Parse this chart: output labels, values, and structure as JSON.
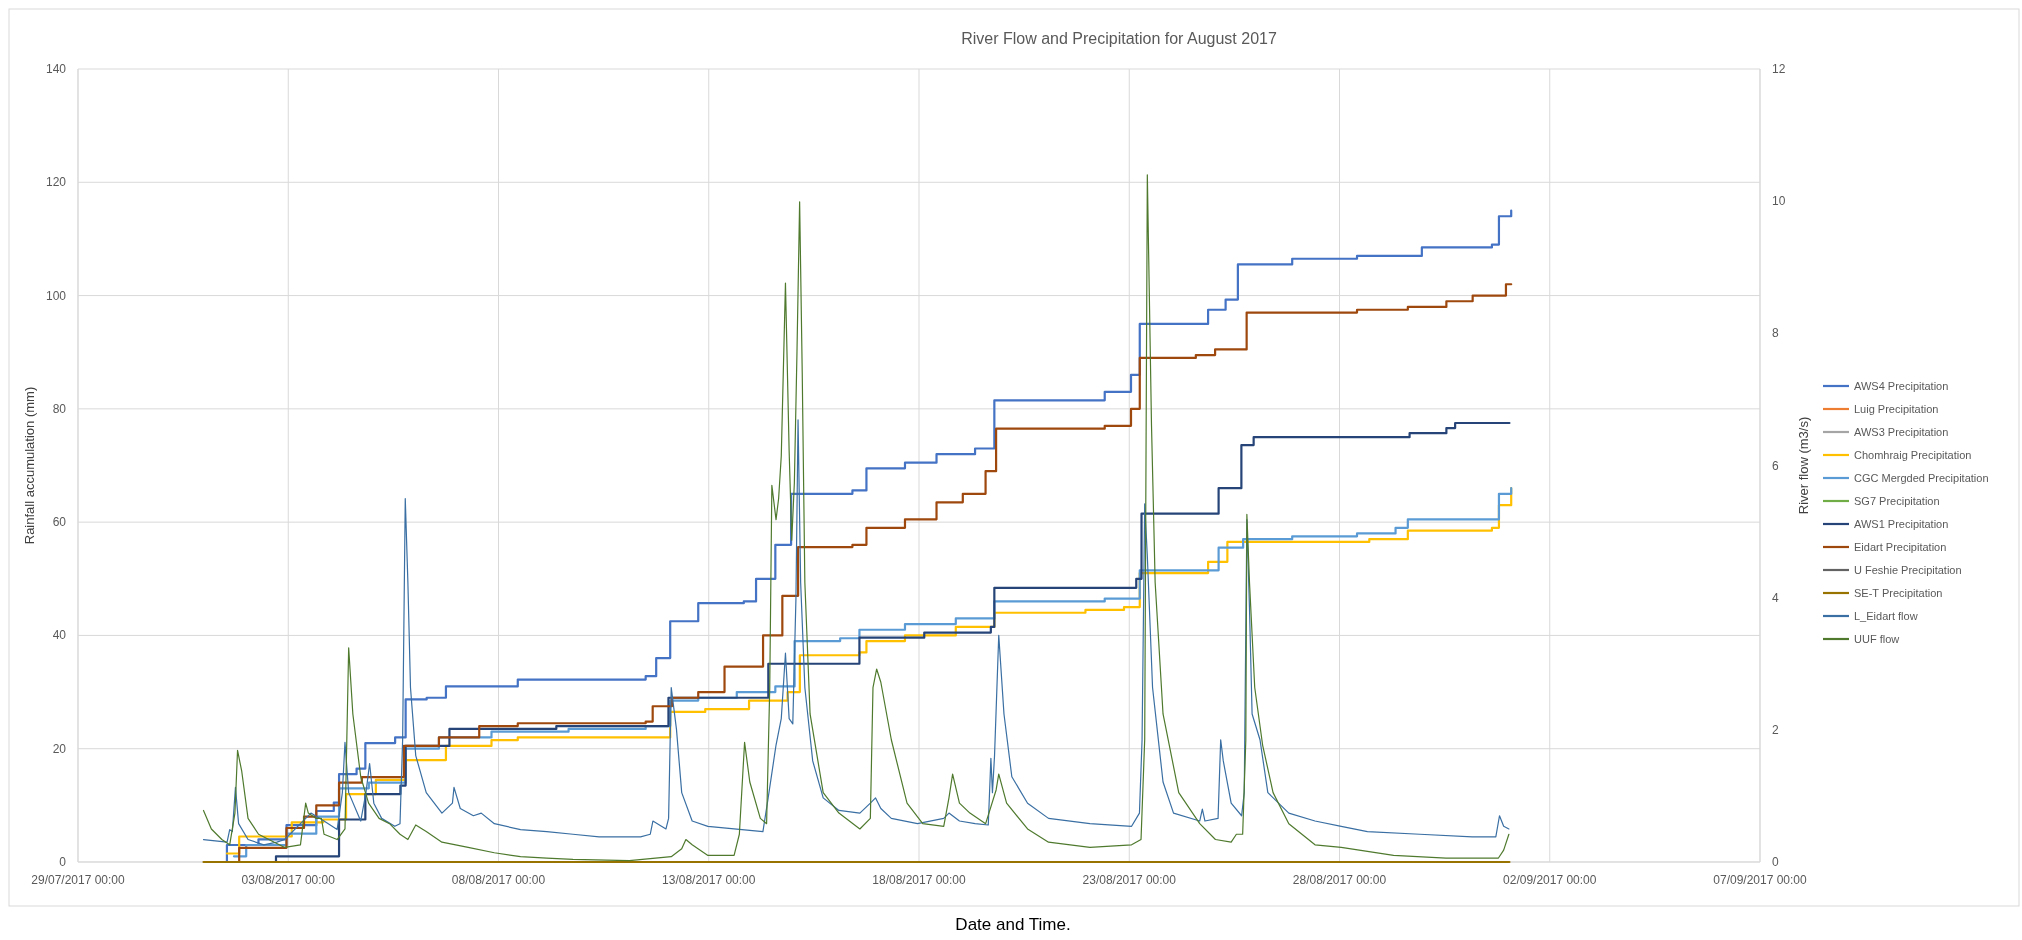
{
  "chart_data": {
    "type": "line",
    "title": "River Flow and Precipitation for August 2017",
    "xlabel": "Date and Time.",
    "ylabel": "Rainfall accumulation (mm)",
    "y2label": "River flow (m3/s)",
    "grid": true,
    "legend": "right",
    "xlim": [
      "2017-07-29",
      "2017-09-07"
    ],
    "xticks": [
      {
        "value": "2017-07-29",
        "label": "29/07/2017 00:00"
      },
      {
        "value": "2017-08-03",
        "label": "03/08/2017 00:00"
      },
      {
        "value": "2017-08-08",
        "label": "08/08/2017 00:00"
      },
      {
        "value": "2017-08-13",
        "label": "13/08/2017 00:00"
      },
      {
        "value": "2017-08-18",
        "label": "18/08/2017 00:00"
      },
      {
        "value": "2017-08-23",
        "label": "23/08/2017 00:00"
      },
      {
        "value": "2017-08-28",
        "label": "28/08/2017 00:00"
      },
      {
        "value": "2017-09-02",
        "label": "02/09/2017 00:00"
      },
      {
        "value": "2017-09-07",
        "label": "07/09/2017 00:00"
      }
    ],
    "ylim": [
      0,
      140
    ],
    "yticks": [
      0,
      20,
      40,
      60,
      80,
      100,
      120,
      140
    ],
    "y2lim": [
      0,
      12
    ],
    "y2ticks": [
      0,
      2,
      4,
      6,
      8,
      10,
      12
    ],
    "series": [
      {
        "name": "AWS4 Precipitation",
        "type": "step",
        "color": "#4472c4",
        "x": [
          "2017-08-01T09:00",
          "2017-08-01T13:00",
          "2017-08-02T07:00",
          "2017-08-02T23:00",
          "2017-08-03T16:00",
          "2017-08-04T02:00",
          "2017-08-04T05:00",
          "2017-08-04T15:00",
          "2017-08-04T20:00",
          "2017-08-05T13:00",
          "2017-08-05T19:00",
          "2017-08-06T07:00",
          "2017-08-06T18:00",
          "2017-08-08T11:00",
          "2017-08-11T12:00",
          "2017-08-11T18:00",
          "2017-08-12T02:00",
          "2017-08-12T18:00",
          "2017-08-13T20:00",
          "2017-08-14T03:00",
          "2017-08-14T14:00",
          "2017-08-14T23:00",
          "2017-08-16T10:00",
          "2017-08-16T18:00",
          "2017-08-17T16:00",
          "2017-08-18T10:00",
          "2017-08-19T08:00",
          "2017-08-19T19:00",
          "2017-08-22T10:00",
          "2017-08-23T01:00",
          "2017-08-23T06:00",
          "2017-08-24T14:00",
          "2017-08-24T21:00",
          "2017-08-25T07:00",
          "2017-08-25T14:00",
          "2017-08-26T21:00",
          "2017-08-28T10:00",
          "2017-08-29T23:00",
          "2017-08-31T15:00",
          "2017-08-31T19:00",
          "2017-09-01T02:00"
        ],
        "values": [
          0,
          3,
          4,
          6.5,
          9,
          10.5,
          15.5,
          16.5,
          21,
          22,
          28.7,
          29,
          31,
          32.2,
          32.8,
          36,
          42.5,
          45.7,
          46,
          50,
          56,
          65,
          65.6,
          69.5,
          70.5,
          72,
          73,
          81.5,
          83,
          86,
          95,
          95,
          97.5,
          99.3,
          105.5,
          106.5,
          107,
          108.5,
          109,
          114,
          115
        ]
      },
      {
        "name": "Luig Precipitation",
        "type": "step",
        "color": "#ed7d31"
      },
      {
        "name": "AWS3 Precipitation",
        "type": "step",
        "color": "#a5a5a5"
      },
      {
        "name": "Chomhraig Precipitation",
        "type": "step",
        "color": "#ffc000",
        "x": [
          "2017-08-01T13:00",
          "2017-08-01T20:00",
          "2017-08-03T02:00",
          "2017-08-03T20:00",
          "2017-08-04T09:00",
          "2017-08-05T02:00",
          "2017-08-05T19:00",
          "2017-08-06T18:00",
          "2017-08-07T20:00",
          "2017-08-08T11:00",
          "2017-08-12T02:00",
          "2017-08-12T22:00",
          "2017-08-13T23:00",
          "2017-08-14T21:00",
          "2017-08-15T04:00",
          "2017-08-16T14:00",
          "2017-08-16T18:00",
          "2017-08-17T16:00",
          "2017-08-18T21:00",
          "2017-08-19T19:00",
          "2017-08-21T23:00",
          "2017-08-22T21:00",
          "2017-08-23T06:00",
          "2017-08-24T21:00",
          "2017-08-25T08:00",
          "2017-08-28T17:00",
          "2017-08-29T15:00",
          "2017-08-31T15:00",
          "2017-08-31T19:00",
          "2017-09-01T02:00"
        ],
        "values": [
          1.5,
          4.5,
          7,
          7.5,
          12,
          14.5,
          18,
          20.5,
          21.5,
          22,
          26.5,
          27,
          28.5,
          30,
          36.5,
          37,
          39,
          40,
          41.5,
          44,
          44.5,
          45,
          51,
          53,
          56.5,
          57,
          58.5,
          59,
          63,
          66
        ]
      },
      {
        "name": "CGC Mergded Precipitation",
        "type": "step",
        "color": "#5b9bd5",
        "x": [
          "2017-08-01T17:00",
          "2017-08-02T00:00",
          "2017-08-02T23:00",
          "2017-08-03T16:00",
          "2017-08-04T05:00",
          "2017-08-04T22:00",
          "2017-08-05T19:00",
          "2017-08-06T14:00",
          "2017-08-07T20:00",
          "2017-08-09T16:00",
          "2017-08-11T12:00",
          "2017-08-12T02:00",
          "2017-08-12T18:00",
          "2017-08-13T16:00",
          "2017-08-14T14:00",
          "2017-08-15T01:00",
          "2017-08-16T03:00",
          "2017-08-16T14:00",
          "2017-08-17T16:00",
          "2017-08-18T21:00",
          "2017-08-19T19:00",
          "2017-08-22T10:00",
          "2017-08-23T06:00",
          "2017-08-25T03:00",
          "2017-08-25T17:00",
          "2017-08-26T21:00",
          "2017-08-28T10:00",
          "2017-08-29T08:00",
          "2017-08-29T15:00",
          "2017-08-31T19:00",
          "2017-09-01T02:00"
        ],
        "values": [
          1,
          3,
          5,
          8,
          13,
          14,
          20,
          22,
          23,
          23.5,
          24,
          28.5,
          29,
          30,
          31,
          39,
          39.5,
          41,
          42,
          43,
          46,
          46.5,
          51.5,
          55.5,
          57,
          57.5,
          58,
          59,
          60.5,
          65,
          66
        ]
      },
      {
        "name": "SG7 Precipitation",
        "type": "step",
        "color": "#70ad47"
      },
      {
        "name": "AWS1 Precipitation",
        "type": "step",
        "color": "#264478",
        "x": [
          "2017-08-01T20:00",
          "2017-08-02T17:00",
          "2017-08-04T05:00",
          "2017-08-04T20:00",
          "2017-08-05T16:00",
          "2017-08-05T19:00",
          "2017-08-06T20:00",
          "2017-08-09T09:00",
          "2017-08-12T01:00",
          "2017-08-14T10:00",
          "2017-08-16T14:00",
          "2017-08-18T03:00",
          "2017-08-19T17:00",
          "2017-08-19T19:00",
          "2017-08-23T04:00",
          "2017-08-23T07:00",
          "2017-08-25T03:00",
          "2017-08-25T16:00",
          "2017-08-25T23:00",
          "2017-08-29T16:00",
          "2017-08-30T13:00",
          "2017-08-30T18:00",
          "2017-09-01T01:00"
        ],
        "values": [
          0,
          1,
          7.5,
          12,
          13.5,
          20.5,
          23.5,
          24,
          29,
          35,
          39.6,
          40.5,
          41.5,
          48.4,
          50,
          61.5,
          66,
          73.6,
          75,
          75.7,
          76.6,
          77.5,
          77.5
        ]
      },
      {
        "name": "Eidart Precipitation",
        "type": "step",
        "color": "#9e480e",
        "x": [
          "2017-08-01T17:00",
          "2017-08-01T20:00",
          "2017-08-02T23:00",
          "2017-08-03T09:00",
          "2017-08-03T16:00",
          "2017-08-04T05:00",
          "2017-08-04T18:00",
          "2017-08-05T18:00",
          "2017-08-06T14:00",
          "2017-08-07T13:00",
          "2017-08-08T11:00",
          "2017-08-11T12:00",
          "2017-08-11T16:00",
          "2017-08-12T03:00",
          "2017-08-12T18:00",
          "2017-08-13T09:00",
          "2017-08-14T07:00",
          "2017-08-14T18:00",
          "2017-08-15T03:00",
          "2017-08-16T10:00",
          "2017-08-16T18:00",
          "2017-08-17T16:00",
          "2017-08-18T10:00",
          "2017-08-19T01:00",
          "2017-08-19T14:00",
          "2017-08-19T20:00",
          "2017-08-22T10:00",
          "2017-08-23T01:00",
          "2017-08-23T06:00",
          "2017-08-24T14:00",
          "2017-08-25T01:00",
          "2017-08-25T19:00",
          "2017-08-28T10:00",
          "2017-08-29T15:00",
          "2017-08-30T13:00",
          "2017-08-31T04:00",
          "2017-08-31T23:00",
          "2017-09-01T02:00"
        ],
        "values": [
          0,
          2.5,
          6,
          8,
          10,
          14,
          15,
          20.5,
          22,
          24,
          24.5,
          24.8,
          27.5,
          29,
          30,
          34.5,
          40,
          47,
          55.6,
          56,
          59,
          60.5,
          63.5,
          65,
          69,
          76.5,
          77,
          80,
          89,
          89.5,
          90.5,
          97,
          97.5,
          98,
          99,
          100,
          102,
          102
        ]
      },
      {
        "name": "U Feshie Precipitation",
        "type": "step",
        "color": "#636363"
      },
      {
        "name": "SE-T Precipitation",
        "type": "step",
        "color": "#997300",
        "x": [
          "2017-07-31T23:38",
          "2017-09-01T01:00"
        ],
        "values": [
          0,
          0
        ]
      },
      {
        "name": "L_Eidart flow",
        "type": "line",
        "axis": "y2",
        "color": "#3a6fa3",
        "x": [
          "2017-07-31T23:38",
          "2017-08-01T13:05",
          "2017-08-01T14:35",
          "2017-08-01T16:05",
          "2017-08-01T17:52",
          "2017-08-01T19:40",
          "2017-08-02T01:03",
          "2017-08-02T10:02",
          "2017-08-02T17:30",
          "2017-08-02T22:00",
          "2017-08-03T06:58",
          "2017-08-03T12:57",
          "2017-08-03T20:25",
          "2017-08-04T03:54",
          "2017-08-04T06:53",
          "2017-08-04T08:23",
          "2017-08-04T10:29",
          "2017-08-04T17:22",
          "2017-08-04T20:21",
          "2017-08-04T22:26",
          "2017-08-05T00:50",
          "2017-08-05T05:19",
          "2017-08-05T12:48",
          "2017-08-05T15:47",
          "2017-08-05T17:17",
          "2017-08-05T18:47",
          "2017-08-05T20:17",
          "2017-08-05T21:46",
          "2017-08-06T00:46",
          "2017-08-06T06:45",
          "2017-08-06T15:43",
          "2017-08-06T21:42",
          "2017-08-06T22:36",
          "2017-08-07T02:11",
          "2017-08-07T09:40",
          "2017-08-07T14:09",
          "2017-08-07T21:38",
          "2017-08-08T12:35",
          "2017-08-09T03:32",
          "2017-08-09T18:29",
          "2017-08-10T09:27",
          "2017-08-11T09:05",
          "2017-08-11T14:37",
          "2017-08-11T16:07",
          "2017-08-11T23:35",
          "2017-08-12T01:05",
          "2017-08-12T02:35",
          "2017-08-12T05:34",
          "2017-08-12T08:34",
          "2017-08-12T14:32",
          "2017-08-12T23:31",
          "2017-08-13T14:28",
          "2017-08-14T06:55",
          "2017-08-14T09:55",
          "2017-08-14T14:24",
          "2017-08-14T17:23",
          "2017-08-14T19:47",
          "2017-08-14T21:53",
          "2017-08-14T23:58",
          "2017-08-15T01:46",
          "2017-08-15T02:58",
          "2017-08-15T04:27",
          "2017-08-15T06:51",
          "2017-08-15T11:20",
          "2017-08-15T17:19",
          "2017-08-16T02:17",
          "2017-08-16T14:15",
          "2017-08-16T20:14",
          "2017-08-16T23:13",
          "2017-08-17T02:13",
          "2017-08-17T08:12",
          "2017-08-17T23:09",
          "2017-08-18T14:07",
          "2017-08-18T17:06",
          "2017-08-18T23:05",
          "2017-08-19T08:03",
          "2017-08-19T15:32",
          "2017-08-19T17:02",
          "2017-08-19T17:55",
          "2017-08-19T19:07",
          "2017-08-19T21:31",
          "2017-08-20T00:30",
          "2017-08-20T04:59",
          "2017-08-20T13:58",
          "2017-08-21T01:56",
          "2017-08-22T01:34",
          "2017-08-23T01:20",
          "2017-08-23T05:49",
          "2017-08-23T07:19",
          "2017-08-23T08:49",
          "2017-08-23T10:19",
          "2017-08-23T13:18",
          "2017-08-23T19:17",
          "2017-08-24T01:16",
          "2017-08-24T16:13",
          "2017-08-24T17:43",
          "2017-08-24T19:13",
          "2017-08-25T02:41",
          "2017-08-25T04:11",
          "2017-08-25T05:40",
          "2017-08-25T10:10",
          "2017-08-25T16:08",
          "2017-08-25T17:38",
          "2017-08-25T19:08",
          "2017-08-25T20:38",
          "2017-08-25T22:07",
          "2017-08-26T02:37",
          "2017-08-26T07:06",
          "2017-08-26T19:04",
          "2017-08-27T10:01",
          "2017-08-28T00:59",
          "2017-08-28T15:56",
          "2017-08-29T21:50",
          "2017-08-31T03:45",
          "2017-08-31T17:13",
          "2017-08-31T19:19",
          "2017-08-31T21:42",
          "2017-09-01T00:41"
        ],
        "values": [
          0.34,
          0.3,
          0.49,
          0.46,
          1.13,
          0.58,
          0.34,
          0.26,
          0.3,
          0.34,
          0.58,
          0.74,
          0.62,
          0.49,
          1.05,
          1.81,
          1.05,
          0.62,
          1.05,
          1.49,
          0.89,
          0.66,
          0.54,
          0.58,
          1.85,
          5.5,
          4.23,
          2.64,
          1.61,
          1.05,
          0.74,
          0.89,
          1.13,
          0.81,
          0.7,
          0.74,
          0.58,
          0.49,
          0.46,
          0.42,
          0.38,
          0.38,
          0.42,
          0.62,
          0.5,
          0.66,
          2.64,
          2.01,
          1.05,
          0.62,
          0.54,
          0.5,
          0.46,
          0.97,
          1.77,
          2.17,
          3.16,
          2.17,
          2.09,
          3.99,
          6.69,
          4.23,
          2.64,
          1.53,
          0.97,
          0.78,
          0.74,
          0.89,
          0.97,
          0.81,
          0.66,
          0.58,
          0.66,
          0.74,
          0.62,
          0.58,
          0.56,
          1.57,
          1.05,
          1.61,
          3.43,
          2.24,
          1.29,
          0.89,
          0.66,
          0.58,
          0.54,
          0.74,
          1.85,
          5.42,
          4.63,
          2.64,
          1.21,
          0.74,
          0.62,
          0.8,
          0.62,
          0.66,
          1.85,
          1.53,
          0.89,
          0.7,
          1.05,
          5.18,
          3.83,
          2.24,
          1.85,
          1.05,
          0.74,
          0.62,
          0.54,
          0.46,
          0.42,
          0.38,
          0.38,
          0.7,
          0.54,
          0.5
        ]
      },
      {
        "name": "UUF flow",
        "type": "line",
        "axis": "y2",
        "color": "#4f7a2e",
        "x": [
          "2017-07-31T23:38",
          "2017-08-01T04:07",
          "2017-08-01T10:06",
          "2017-08-01T14:35",
          "2017-08-01T17:34",
          "2017-08-01T19:04",
          "2017-08-01T21:28",
          "2017-08-02T01:03",
          "2017-08-02T07:02",
          "2017-08-02T16:01",
          "2017-08-02T22:00",
          "2017-08-03T06:58",
          "2017-08-03T09:57",
          "2017-08-03T11:27",
          "2017-08-03T15:56",
          "2017-08-03T18:56",
          "2017-08-03T20:25",
          "2017-08-04T03:54",
          "2017-08-04T08:23",
          "2017-08-04T10:29",
          "2017-08-04T12:52",
          "2017-08-04T17:22",
          "2017-08-04T21:51",
          "2017-08-05T03:50",
          "2017-08-05T09:49",
          "2017-08-05T15:47",
          "2017-08-05T20:17",
          "2017-08-06T00:46",
          "2017-08-06T06:45",
          "2017-08-06T15:43",
          "2017-08-07T06:40",
          "2017-08-07T21:38",
          "2017-08-08T12:35",
          "2017-08-09T03:32",
          "2017-08-09T18:29",
          "2017-08-11T02:39",
          "2017-08-12T02:35",
          "2017-08-12T08:34",
          "2017-08-12T10:57",
          "2017-08-12T14:32",
          "2017-08-12T23:31",
          "2017-08-13T14:28",
          "2017-08-13T17:28",
          "2017-08-13T20:27",
          "2017-08-13T23:26",
          "2017-08-14T05:26",
          "2017-08-14T09:01",
          "2017-08-14T10:49",
          "2017-08-14T12:01",
          "2017-08-14T14:24",
          "2017-08-14T15:53",
          "2017-08-14T17:23",
          "2017-08-14T19:47",
          "2017-08-14T21:53",
          "2017-08-14T23:22",
          "2017-08-15T00:52",
          "2017-08-15T02:22",
          "2017-08-15T03:52",
          "2017-08-15T05:21",
          "2017-08-15T06:51",
          "2017-08-15T09:50",
          "2017-08-15T17:19",
          "2017-08-16T02:17",
          "2017-08-16T14:15",
          "2017-08-16T20:14",
          "2017-08-16T21:44",
          "2017-08-16T23:49",
          "2017-08-17T02:13",
          "2017-08-17T08:12",
          "2017-08-17T17:10",
          "2017-08-18T02:08",
          "2017-08-18T14:07",
          "2017-08-18T17:06",
          "2017-08-18T19:11",
          "2017-08-18T23:05",
          "2017-08-19T05:04",
          "2017-08-19T14:02",
          "2017-08-19T20:01",
          "2017-08-19T21:31",
          "2017-08-20T02:00",
          "2017-08-20T13:58",
          "2017-08-21T01:56",
          "2017-08-22T01:34",
          "2017-08-23T01:20",
          "2017-08-23T06:43",
          "2017-08-23T08:49",
          "2017-08-23T10:19",
          "2017-08-23T12:42",
          "2017-08-23T14:47",
          "2017-08-23T19:17",
          "2017-08-24T04:15",
          "2017-08-24T16:13",
          "2017-08-25T01:11",
          "2017-08-25T10:10",
          "2017-08-25T13:09",
          "2017-08-25T16:44",
          "2017-08-25T18:32",
          "2017-08-25T19:08",
          "2017-08-25T20:38",
          "2017-08-25T23:37",
          "2017-08-26T04:07",
          "2017-08-26T10:05",
          "2017-08-26T19:04",
          "2017-08-27T10:01",
          "2017-08-28T00:59",
          "2017-08-29T06:53",
          "2017-08-30T12:48",
          "2017-08-31T18:43",
          "2017-08-31T21:42",
          "2017-09-01T00:41"
        ],
        "values": [
          0.78,
          0.5,
          0.34,
          0.26,
          0.74,
          1.69,
          1.37,
          0.66,
          0.42,
          0.3,
          0.22,
          0.26,
          0.89,
          0.74,
          0.66,
          0.66,
          0.42,
          0.34,
          0.5,
          3.24,
          2.24,
          1.29,
          0.89,
          0.66,
          0.58,
          0.42,
          0.34,
          0.56,
          0.46,
          0.3,
          0.22,
          0.14,
          0.08,
          0.06,
          0.04,
          0.02,
          0.08,
          0.2,
          0.34,
          0.26,
          0.1,
          0.1,
          0.42,
          1.81,
          1.21,
          0.66,
          0.58,
          2.64,
          5.7,
          5.18,
          5.5,
          6.14,
          8.76,
          6.22,
          4.87,
          5.74,
          7.73,
          9.99,
          7.41,
          4.23,
          2.24,
          1.05,
          0.74,
          0.5,
          0.66,
          2.64,
          2.92,
          2.72,
          1.85,
          0.89,
          0.58,
          0.54,
          0.97,
          1.33,
          0.89,
          0.74,
          0.58,
          1.09,
          1.33,
          0.89,
          0.5,
          0.3,
          0.22,
          0.26,
          0.34,
          1.85,
          10.4,
          6.61,
          4.23,
          2.24,
          1.05,
          0.58,
          0.34,
          0.3,
          0.42,
          0.42,
          1.85,
          5.26,
          4.23,
          2.64,
          1.77,
          1.05,
          0.58,
          0.26,
          0.22,
          0.1,
          0.06,
          0.06,
          0.18,
          0.42
        ]
      }
    ]
  }
}
